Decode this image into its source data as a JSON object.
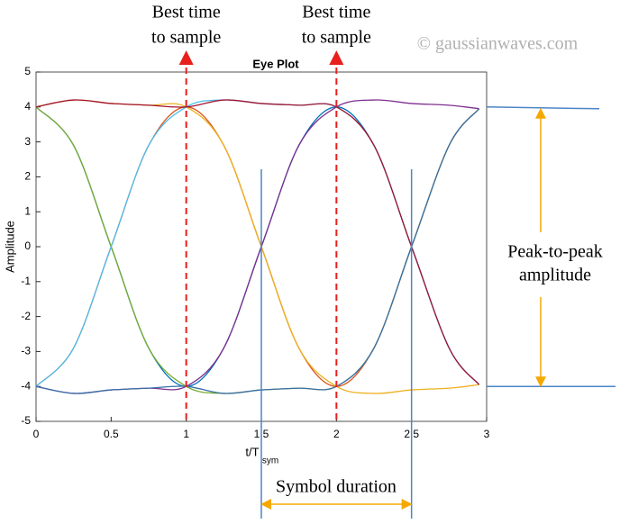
{
  "chart_data": {
    "type": "line",
    "title": "Eye Plot",
    "xlabel": "t/T",
    "xlabel_sub": "sym",
    "ylabel": "Amplitude",
    "x": [
      0,
      0.25,
      0.5,
      0.75,
      1,
      1.25,
      1.5,
      1.75,
      2,
      2.25,
      2.5,
      2.75,
      2.95
    ],
    "series": [
      {
        "color": "#0072bd",
        "values": [
          4,
          2.9,
          0,
          -2.9,
          -4,
          -2.9,
          0,
          2.9,
          4,
          2.9,
          0,
          -2.9,
          -3.95
        ]
      },
      {
        "color": "#d95319",
        "values": [
          -4,
          -2.9,
          0,
          2.9,
          4,
          2.9,
          0,
          -2.9,
          -4,
          -2.9,
          0,
          2.9,
          3.95
        ]
      },
      {
        "color": "#edb120",
        "values": [
          4,
          4.2,
          4.1,
          4.05,
          4,
          2.9,
          0,
          -2.9,
          -4,
          -4.2,
          -4.1,
          -4.05,
          -3.95
        ]
      },
      {
        "color": "#7e2f8e",
        "values": [
          -4,
          -4.2,
          -4.1,
          -4.05,
          -4,
          -2.9,
          0,
          2.9,
          4,
          4.2,
          4.1,
          4.05,
          3.95
        ]
      },
      {
        "color": "#77ac30",
        "values": [
          4,
          2.9,
          0,
          -2.9,
          -4,
          -4.2,
          -4.1,
          -4.05,
          -4,
          -2.9,
          0,
          2.9,
          3.95
        ]
      },
      {
        "color": "#4dbeee",
        "values": [
          -4,
          -2.9,
          0,
          2.9,
          4,
          4.2,
          4.1,
          4.05,
          4,
          2.9,
          0,
          -2.9,
          -3.95
        ]
      },
      {
        "color": "#a2142f",
        "values": [
          4,
          4.2,
          4.1,
          4.05,
          4,
          4.2,
          4.1,
          4.05,
          4,
          2.9,
          0,
          -2.9,
          -3.95
        ]
      },
      {
        "color": "#3a6fa8",
        "values": [
          -4,
          -4.2,
          -4.1,
          -4.05,
          -4,
          -4.2,
          -4.1,
          -4.05,
          -4,
          -2.9,
          0,
          2.9,
          3.95
        ]
      }
    ],
    "xlim": [
      0,
      3
    ],
    "xticks": [
      0,
      0.5,
      1,
      1.5,
      2,
      2.5,
      3
    ],
    "ylim": [
      -5,
      5
    ],
    "yticks": [
      -5,
      -4,
      -3,
      -2,
      -1,
      0,
      1,
      2,
      3,
      4,
      5
    ],
    "annotations": [
      {
        "text": [
          "Best time",
          "to sample"
        ],
        "x": 1,
        "color": "#e8201c"
      },
      {
        "text": [
          "Best time",
          "to sample"
        ],
        "x": 2,
        "color": "#e8201c"
      }
    ],
    "symbol_duration": {
      "text": "Symbol duration",
      "x": [
        1.5,
        2.5
      ]
    },
    "peak_to_peak": {
      "text": [
        "Peak-to-peak",
        "amplitude"
      ],
      "y": [
        4,
        -4
      ]
    },
    "watermark": "© gaussianwaves.com"
  }
}
